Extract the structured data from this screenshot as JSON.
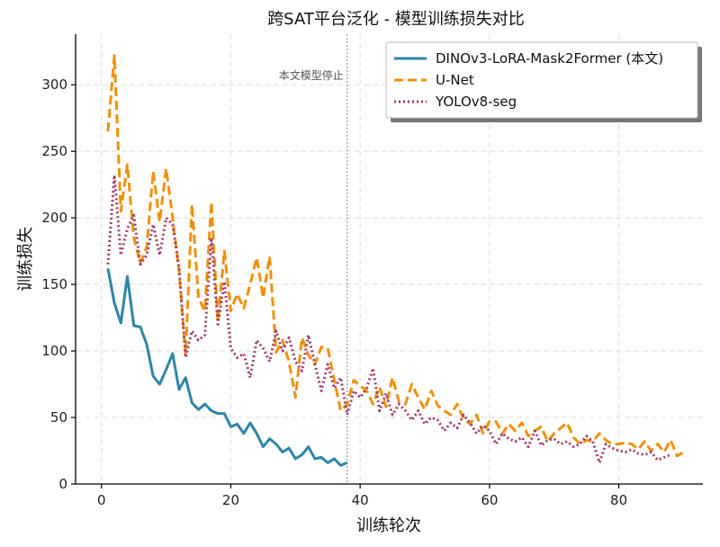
{
  "chart_data": {
    "type": "line",
    "title": "跨SAT平台泛化 - 模型训练损失对比",
    "xlabel": "训练轮次",
    "ylabel": "训练损失",
    "xlim": [
      -4,
      93
    ],
    "ylim": [
      0,
      338
    ],
    "xticks": [
      0,
      20,
      40,
      60,
      80
    ],
    "yticks": [
      0,
      50,
      100,
      150,
      200,
      250,
      300
    ],
    "grid": true,
    "legend_position": "top-right",
    "annotation": {
      "text": "本文模型停止",
      "x": 38
    },
    "series": [
      {
        "name": "DINOv3-LoRA-Mask2Former (本文)",
        "color": "#2e86a6",
        "style": "solid",
        "x": [
          1,
          2,
          3,
          4,
          5,
          6,
          7,
          8,
          9,
          10,
          11,
          12,
          13,
          14,
          15,
          16,
          17,
          18,
          19,
          20,
          21,
          22,
          23,
          24,
          25,
          26,
          27,
          28,
          29,
          30,
          31,
          32,
          33,
          34,
          35,
          36,
          37,
          38
        ],
        "y": [
          162,
          136,
          121,
          156,
          119,
          118,
          105,
          81,
          75,
          86,
          98,
          71,
          80,
          61,
          56,
          60,
          55,
          53,
          53,
          43,
          45,
          38,
          46,
          38,
          28,
          34,
          30,
          24,
          27,
          19,
          22,
          28,
          19,
          20,
          16,
          19,
          14,
          16
        ]
      },
      {
        "name": "U-Net",
        "color": "#f0900a",
        "style": "dashed",
        "x": [
          1,
          2,
          3,
          4,
          5,
          6,
          7,
          8,
          9,
          10,
          11,
          12,
          13,
          14,
          15,
          16,
          17,
          18,
          19,
          20,
          21,
          22,
          23,
          24,
          25,
          26,
          27,
          28,
          29,
          30,
          31,
          32,
          33,
          34,
          35,
          36,
          37,
          38,
          39,
          40,
          41,
          42,
          43,
          44,
          45,
          46,
          47,
          48,
          49,
          50,
          51,
          52,
          53,
          54,
          55,
          56,
          57,
          58,
          59,
          60,
          61,
          62,
          63,
          64,
          65,
          66,
          67,
          68,
          69,
          70,
          71,
          72,
          73,
          74,
          75,
          76,
          77,
          78,
          79,
          80,
          81,
          82,
          83,
          84,
          85,
          86,
          87,
          88,
          89,
          90
        ],
        "y": [
          265,
          322,
          205,
          240,
          185,
          166,
          178,
          235,
          197,
          237,
          200,
          160,
          97,
          210,
          140,
          130,
          212,
          122,
          175,
          130,
          143,
          132,
          150,
          170,
          140,
          171,
          99,
          108,
          92,
          65,
          110,
          97,
          90,
          103,
          102,
          78,
          55,
          60,
          78,
          74,
          70,
          60,
          73,
          58,
          80,
          62,
          60,
          75,
          65,
          56,
          70,
          59,
          55,
          52,
          60,
          49,
          45,
          52,
          38,
          47,
          47,
          38,
          45,
          40,
          46,
          36,
          40,
          43,
          32,
          38,
          42,
          46,
          35,
          30,
          33,
          32,
          38,
          33,
          30,
          30,
          31,
          30,
          26,
          32,
          25,
          30,
          24,
          33,
          21,
          24
        ]
      },
      {
        "name": "YOLOv8-seg",
        "color": "#a03a6e",
        "style": "dotted",
        "x": [
          1,
          2,
          3,
          4,
          5,
          6,
          7,
          8,
          9,
          10,
          11,
          12,
          13,
          14,
          15,
          16,
          17,
          18,
          19,
          20,
          21,
          22,
          23,
          24,
          25,
          26,
          27,
          28,
          29,
          30,
          31,
          32,
          33,
          34,
          35,
          36,
          37,
          38,
          39,
          40,
          41,
          42,
          43,
          44,
          45,
          46,
          47,
          48,
          49,
          50,
          51,
          52,
          53,
          54,
          55,
          56,
          57,
          58,
          59,
          60,
          61,
          62,
          63,
          64,
          65,
          66,
          67,
          68,
          69,
          70,
          71,
          72,
          73,
          74,
          75,
          76,
          77,
          78,
          79,
          80,
          81,
          82,
          83,
          84,
          85,
          86,
          87,
          88
        ],
        "y": [
          165,
          232,
          172,
          192,
          202,
          165,
          172,
          195,
          172,
          200,
          195,
          162,
          95,
          115,
          108,
          112,
          185,
          120,
          152,
          102,
          95,
          98,
          80,
          108,
          102,
          92,
          115,
          100,
          110,
          92,
          85,
          112,
          90,
          70,
          90,
          72,
          80,
          52,
          70,
          65,
          72,
          87,
          55,
          68,
          52,
          60,
          55,
          48,
          55,
          45,
          50,
          48,
          40,
          46,
          42,
          52,
          46,
          38,
          44,
          40,
          30,
          38,
          34,
          32,
          35,
          28,
          40,
          29,
          33,
          34,
          30,
          32,
          28,
          30,
          36,
          32,
          16,
          30,
          27,
          25,
          24,
          26,
          23,
          22,
          24,
          18,
          20,
          22
        ]
      }
    ]
  }
}
